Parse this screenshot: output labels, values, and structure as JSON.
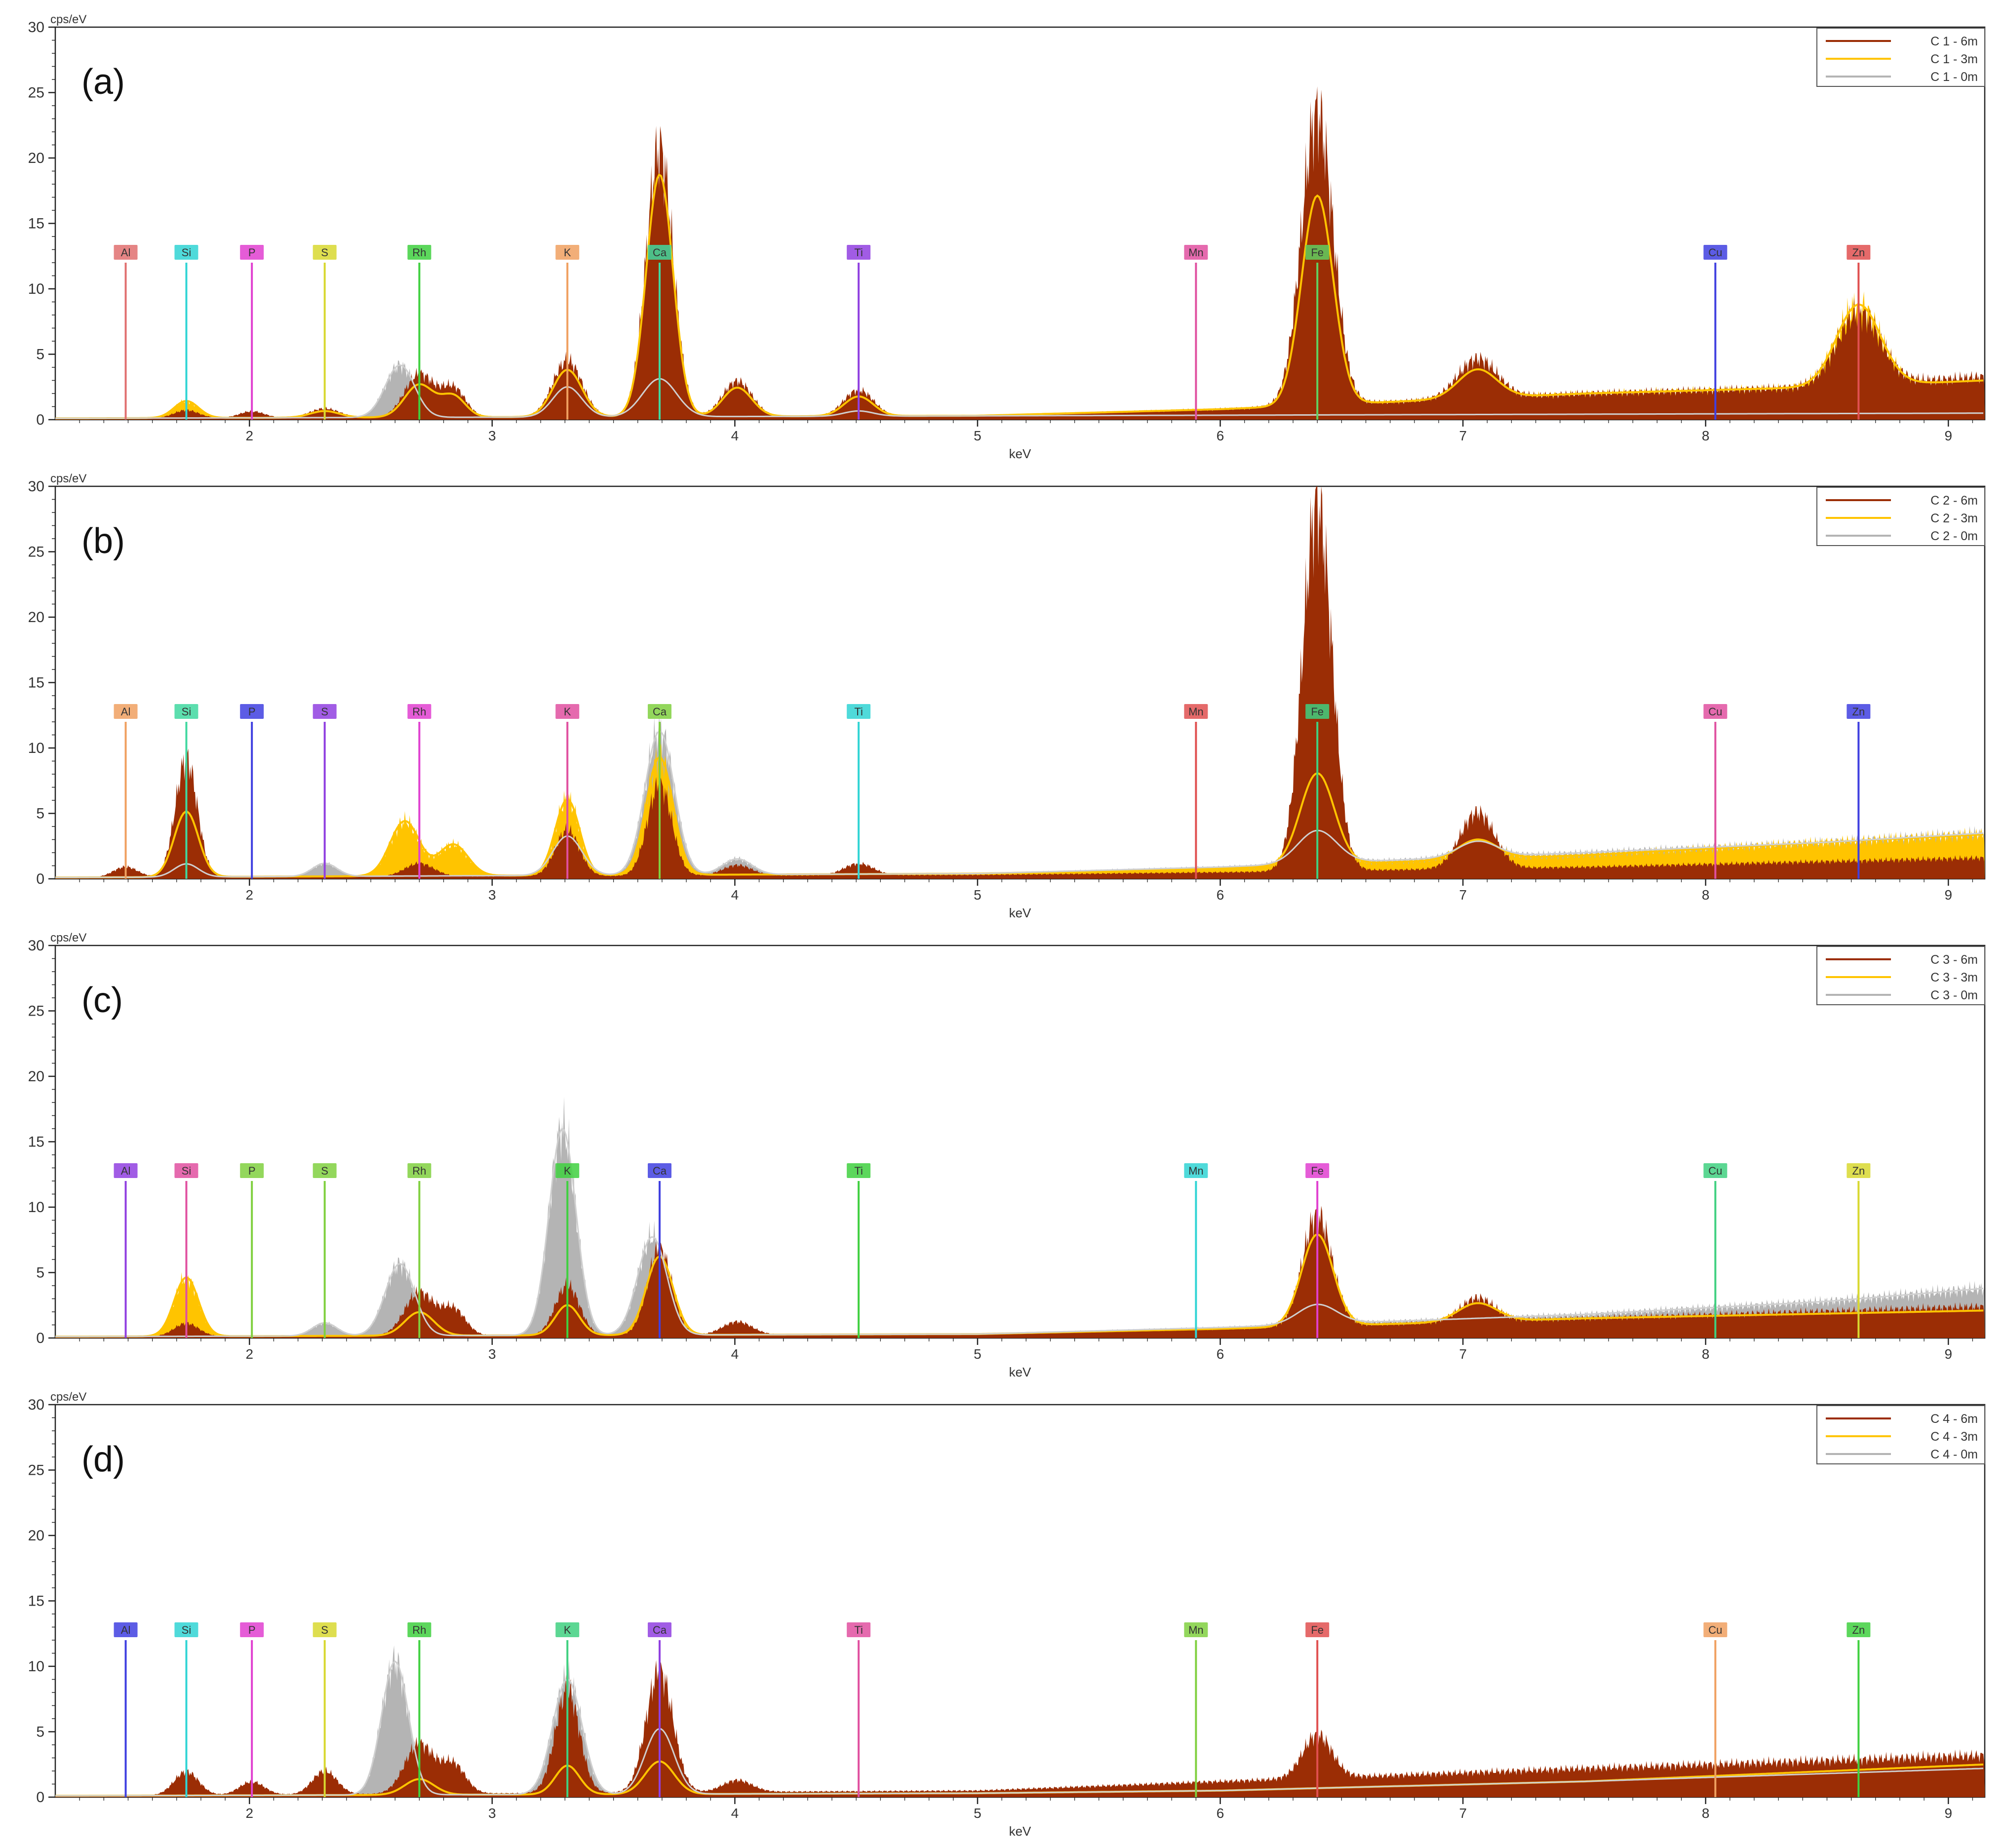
{
  "colors": {
    "c6m": "#9b2d05",
    "c3m": "#ffc400",
    "c0m": "#b4b4b4",
    "axis": "#222222"
  },
  "axis": {
    "y_unit": "cps/eV",
    "x_unit": "keV",
    "y_ticks": [
      "0",
      "5",
      "10",
      "15",
      "20",
      "25",
      "30"
    ],
    "x_ticks": [
      "2",
      "3",
      "4",
      "5",
      "6",
      "7",
      "8",
      "9"
    ]
  },
  "chart_data": [
    {
      "type": "area",
      "panel_label": "(a)",
      "xlabel": "keV",
      "ylabel": "cps/eV",
      "xlim": [
        1.2,
        9.15
      ],
      "ylim": [
        0,
        30
      ],
      "grid": false,
      "legend_position": "top-right",
      "legend": [
        "C 1 - 6m",
        "C 1 - 3m",
        "C 1 - 0m"
      ],
      "element_markers": [
        {
          "label": "Al",
          "energy": 1.49,
          "color": "#e07070"
        },
        {
          "label": "Si",
          "energy": 1.74,
          "color": "#30d4d4"
        },
        {
          "label": "P",
          "energy": 2.01,
          "color": "#e040d0"
        },
        {
          "label": "S",
          "energy": 2.31,
          "color": "#d8d830"
        },
        {
          "label": "Rh",
          "energy": 2.7,
          "color": "#40d040"
        },
        {
          "label": "K",
          "energy": 3.31,
          "color": "#f0a060"
        },
        {
          "label": "Ca",
          "energy": 3.69,
          "color": "#40d8a0"
        },
        {
          "label": "Ti",
          "energy": 4.51,
          "color": "#9040e0"
        },
        {
          "label": "Mn",
          "energy": 5.9,
          "color": "#e050a0"
        },
        {
          "label": "Fe",
          "energy": 6.4,
          "color": "#60d060"
        },
        {
          "label": "Cu",
          "energy": 8.04,
          "color": "#4040e0"
        },
        {
          "label": "Zn",
          "energy": 8.63,
          "color": "#e05050"
        }
      ],
      "series": [
        {
          "name": "C 1 - 6m",
          "baseline": [
            [
              1.2,
              0.1
            ],
            [
              5.0,
              0.3
            ],
            [
              6.0,
              0.8
            ],
            [
              7.5,
              2.0
            ],
            [
              8.5,
              2.5
            ],
            [
              9.15,
              3.3
            ]
          ],
          "peaks": [
            [
              1.74,
              0.6,
              0.05
            ],
            [
              2.01,
              0.5,
              0.05
            ],
            [
              2.31,
              0.7,
              0.06
            ],
            [
              2.7,
              3.3,
              0.06
            ],
            [
              2.84,
              2.2,
              0.05
            ],
            [
              3.31,
              4.3,
              0.06
            ],
            [
              3.69,
              20.5,
              0.055
            ],
            [
              4.01,
              2.7,
              0.06
            ],
            [
              4.51,
              2.0,
              0.06
            ],
            [
              6.4,
              22.3,
              0.065
            ],
            [
              7.06,
              3.0,
              0.08
            ],
            [
              8.63,
              5.5,
              0.09
            ]
          ]
        },
        {
          "name": "C 1 - 3m",
          "baseline": [
            [
              1.2,
              0.1
            ],
            [
              5.0,
              0.3
            ],
            [
              6.0,
              0.8
            ],
            [
              7.5,
              2.0
            ],
            [
              8.5,
              2.5
            ],
            [
              9.15,
              3.0
            ]
          ],
          "peaks": [
            [
              1.74,
              1.3,
              0.05
            ],
            [
              2.31,
              0.5,
              0.06
            ],
            [
              2.7,
              2.5,
              0.06
            ],
            [
              2.84,
              1.6,
              0.05
            ],
            [
              3.31,
              3.6,
              0.06
            ],
            [
              3.69,
              18.5,
              0.055
            ],
            [
              4.01,
              2.2,
              0.06
            ],
            [
              4.51,
              1.5,
              0.06
            ],
            [
              6.4,
              16.0,
              0.065
            ],
            [
              7.06,
              2.2,
              0.08
            ],
            [
              8.63,
              6.2,
              0.09
            ]
          ]
        },
        {
          "name": "C 1 - 0m",
          "baseline": [
            [
              1.2,
              0.1
            ],
            [
              9.15,
              0.5
            ]
          ],
          "peaks": [
            [
              2.62,
              4.0,
              0.06
            ],
            [
              3.31,
              2.3,
              0.06
            ],
            [
              3.69,
              2.9,
              0.07
            ],
            [
              4.51,
              0.4,
              0.06
            ]
          ]
        }
      ]
    },
    {
      "type": "area",
      "panel_label": "(b)",
      "xlabel": "keV",
      "ylabel": "cps/eV",
      "xlim": [
        1.2,
        9.15
      ],
      "ylim": [
        0,
        30
      ],
      "grid": false,
      "legend_position": "top-right",
      "legend": [
        "C 2 - 6m",
        "C 2 - 3m",
        "C 2 - 0m"
      ],
      "element_markers": [
        {
          "label": "Al",
          "energy": 1.49,
          "color": "#f0a060"
        },
        {
          "label": "Si",
          "energy": 1.74,
          "color": "#40d8a0"
        },
        {
          "label": "P",
          "energy": 2.01,
          "color": "#4040e0"
        },
        {
          "label": "S",
          "energy": 2.31,
          "color": "#9040e0"
        },
        {
          "label": "Rh",
          "energy": 2.7,
          "color": "#e040d0"
        },
        {
          "label": "K",
          "energy": 3.31,
          "color": "#e050a0"
        },
        {
          "label": "Ca",
          "energy": 3.69,
          "color": "#80d040"
        },
        {
          "label": "Ti",
          "energy": 4.51,
          "color": "#30d4d4"
        },
        {
          "label": "Mn",
          "energy": 5.9,
          "color": "#e05050"
        },
        {
          "label": "Fe",
          "energy": 6.4,
          "color": "#40d080"
        },
        {
          "label": "Cu",
          "energy": 8.04,
          "color": "#e050a0"
        },
        {
          "label": "Zn",
          "energy": 8.63,
          "color": "#4040e0"
        }
      ],
      "series": [
        {
          "name": "C 2 - 6m",
          "baseline": [
            [
              1.2,
              0.1
            ],
            [
              5.0,
              0.3
            ],
            [
              6.0,
              0.5
            ],
            [
              7.5,
              0.9
            ],
            [
              9.15,
              1.6
            ]
          ],
          "peaks": [
            [
              1.49,
              0.8,
              0.05
            ],
            [
              1.74,
              9.0,
              0.045
            ],
            [
              2.7,
              1.0,
              0.06
            ],
            [
              3.31,
              3.5,
              0.05
            ],
            [
              3.69,
              7.0,
              0.05
            ],
            [
              4.01,
              0.8,
              0.06
            ],
            [
              4.51,
              0.9,
              0.06
            ],
            [
              6.4,
              28.0,
              0.06
            ],
            [
              7.06,
              4.3,
              0.07
            ]
          ]
        },
        {
          "name": "C 2 - 3m",
          "baseline": [
            [
              1.2,
              0.1
            ],
            [
              5.0,
              0.4
            ],
            [
              6.0,
              0.8
            ],
            [
              7.5,
              1.8
            ],
            [
              8.5,
              2.8
            ],
            [
              9.15,
              3.4
            ]
          ],
          "peaks": [
            [
              1.74,
              5.0,
              0.05
            ],
            [
              2.64,
              4.2,
              0.06
            ],
            [
              2.84,
              2.4,
              0.06
            ],
            [
              3.31,
              5.8,
              0.05
            ],
            [
              3.69,
              9.0,
              0.055
            ],
            [
              6.4,
              7.0,
              0.07
            ],
            [
              7.06,
              1.5,
              0.08
            ]
          ]
        },
        {
          "name": "C 2 - 0m",
          "baseline": [
            [
              1.2,
              0.1
            ],
            [
              5.0,
              0.4
            ],
            [
              6.0,
              0.9
            ],
            [
              7.5,
              2.0
            ],
            [
              8.5,
              2.8
            ],
            [
              9.15,
              3.5
            ]
          ],
          "peaks": [
            [
              1.74,
              1.0,
              0.05
            ],
            [
              2.31,
              1.0,
              0.05
            ],
            [
              3.31,
              3.0,
              0.06
            ],
            [
              3.69,
              11.0,
              0.06
            ],
            [
              4.01,
              1.2,
              0.06
            ],
            [
              6.4,
              2.5,
              0.08
            ],
            [
              7.06,
              1.2,
              0.08
            ]
          ]
        }
      ]
    },
    {
      "type": "area",
      "panel_label": "(c)",
      "xlabel": "keV",
      "ylabel": "cps/eV",
      "xlim": [
        1.2,
        9.15
      ],
      "ylim": [
        0,
        30
      ],
      "grid": false,
      "legend_position": "top-right",
      "legend": [
        "C 3 - 6m",
        "C 3 - 3m",
        "C 3 - 0m"
      ],
      "element_markers": [
        {
          "label": "Al",
          "energy": 1.49,
          "color": "#9040e0"
        },
        {
          "label": "Si",
          "energy": 1.74,
          "color": "#e050a0"
        },
        {
          "label": "P",
          "energy": 2.01,
          "color": "#80d040"
        },
        {
          "label": "S",
          "energy": 2.31,
          "color": "#80d040"
        },
        {
          "label": "Rh",
          "energy": 2.7,
          "color": "#80d040"
        },
        {
          "label": "K",
          "energy": 3.31,
          "color": "#40d040"
        },
        {
          "label": "Ca",
          "energy": 3.69,
          "color": "#4040e0"
        },
        {
          "label": "Ti",
          "energy": 4.51,
          "color": "#40d040"
        },
        {
          "label": "Mn",
          "energy": 5.9,
          "color": "#30d4d4"
        },
        {
          "label": "Fe",
          "energy": 6.4,
          "color": "#e040d0"
        },
        {
          "label": "Cu",
          "energy": 8.04,
          "color": "#40d080"
        },
        {
          "label": "Zn",
          "energy": 8.63,
          "color": "#d8d830"
        }
      ],
      "series": [
        {
          "name": "C 3 - 6m",
          "baseline": [
            [
              1.2,
              0.1
            ],
            [
              5.0,
              0.3
            ],
            [
              6.0,
              0.7
            ],
            [
              7.5,
              1.5
            ],
            [
              9.15,
              2.4
            ]
          ],
          "peaks": [
            [
              1.74,
              1.0,
              0.05
            ],
            [
              2.7,
              3.3,
              0.06
            ],
            [
              2.84,
              2.0,
              0.05
            ],
            [
              3.31,
              3.8,
              0.05
            ],
            [
              3.69,
              6.6,
              0.05
            ],
            [
              4.01,
              1.0,
              0.06
            ],
            [
              6.4,
              8.5,
              0.06
            ],
            [
              7.06,
              1.8,
              0.07
            ]
          ]
        },
        {
          "name": "C 3 - 3m",
          "baseline": [
            [
              1.2,
              0.1
            ],
            [
              5.0,
              0.3
            ],
            [
              6.0,
              0.7
            ],
            [
              7.5,
              1.5
            ],
            [
              9.15,
              2.1
            ]
          ],
          "peaks": [
            [
              1.74,
              4.5,
              0.05
            ],
            [
              2.7,
              1.8,
              0.06
            ],
            [
              3.31,
              2.3,
              0.05
            ],
            [
              3.69,
              6.0,
              0.055
            ],
            [
              6.4,
              7.0,
              0.065
            ],
            [
              7.06,
              1.4,
              0.08
            ]
          ]
        },
        {
          "name": "C 3 - 0m",
          "baseline": [
            [
              1.2,
              0.1
            ],
            [
              5.0,
              0.3
            ],
            [
              6.0,
              0.8
            ],
            [
              7.5,
              1.8
            ],
            [
              8.5,
              2.8
            ],
            [
              9.15,
              3.8
            ]
          ],
          "peaks": [
            [
              2.31,
              1.0,
              0.05
            ],
            [
              2.62,
              5.5,
              0.06
            ],
            [
              3.29,
              15.8,
              0.055
            ],
            [
              3.66,
              7.5,
              0.06
            ],
            [
              6.4,
              1.5,
              0.08
            ]
          ]
        }
      ]
    },
    {
      "type": "area",
      "panel_label": "(d)",
      "xlabel": "keV",
      "ylabel": "cps/eV",
      "xlim": [
        1.2,
        9.15
      ],
      "ylim": [
        0,
        30
      ],
      "grid": false,
      "legend_position": "top-right",
      "legend": [
        "C 4 - 6m",
        "C 4 - 3m",
        "C 4 - 0m"
      ],
      "element_markers": [
        {
          "label": "Al",
          "energy": 1.49,
          "color": "#4040e0"
        },
        {
          "label": "Si",
          "energy": 1.74,
          "color": "#30d4d4"
        },
        {
          "label": "P",
          "energy": 2.01,
          "color": "#e040d0"
        },
        {
          "label": "S",
          "energy": 2.31,
          "color": "#d8d830"
        },
        {
          "label": "Rh",
          "energy": 2.7,
          "color": "#40d040"
        },
        {
          "label": "K",
          "energy": 3.31,
          "color": "#40d080"
        },
        {
          "label": "Ca",
          "energy": 3.69,
          "color": "#9040e0"
        },
        {
          "label": "Ti",
          "energy": 4.51,
          "color": "#e050a0"
        },
        {
          "label": "Mn",
          "energy": 5.9,
          "color": "#80d040"
        },
        {
          "label": "Fe",
          "energy": 6.4,
          "color": "#e05050"
        },
        {
          "label": "Cu",
          "energy": 8.04,
          "color": "#f0a060"
        },
        {
          "label": "Zn",
          "energy": 8.63,
          "color": "#40d040"
        }
      ],
      "series": [
        {
          "name": "C 4 - 6m",
          "baseline": [
            [
              1.2,
              0.1
            ],
            [
              5.0,
              0.5
            ],
            [
              6.0,
              1.2
            ],
            [
              7.5,
              2.2
            ],
            [
              9.15,
              3.2
            ]
          ],
          "peaks": [
            [
              1.74,
              1.8,
              0.05
            ],
            [
              2.01,
              1.0,
              0.05
            ],
            [
              2.31,
              1.8,
              0.05
            ],
            [
              2.7,
              3.8,
              0.06
            ],
            [
              2.84,
              2.2,
              0.05
            ],
            [
              3.31,
              7.8,
              0.05
            ],
            [
              3.69,
              9.3,
              0.055
            ],
            [
              4.01,
              0.9,
              0.06
            ],
            [
              6.4,
              3.3,
              0.06
            ]
          ]
        },
        {
          "name": "C 4 - 3m",
          "baseline": [
            [
              1.2,
              0.1
            ],
            [
              5.0,
              0.3
            ],
            [
              6.0,
              0.5
            ],
            [
              7.5,
              1.2
            ],
            [
              9.15,
              2.5
            ]
          ],
          "peaks": [
            [
              2.7,
              1.2,
              0.06
            ],
            [
              3.31,
              2.2,
              0.05
            ],
            [
              3.69,
              2.5,
              0.06
            ]
          ]
        },
        {
          "name": "C 4 - 0m",
          "baseline": [
            [
              1.2,
              0.1
            ],
            [
              5.0,
              0.3
            ],
            [
              6.0,
              0.5
            ],
            [
              7.5,
              1.2
            ],
            [
              9.15,
              2.2
            ]
          ],
          "peaks": [
            [
              2.6,
              10.2,
              0.055
            ],
            [
              3.31,
              8.8,
              0.06
            ],
            [
              3.69,
              5.0,
              0.06
            ]
          ]
        }
      ]
    }
  ]
}
